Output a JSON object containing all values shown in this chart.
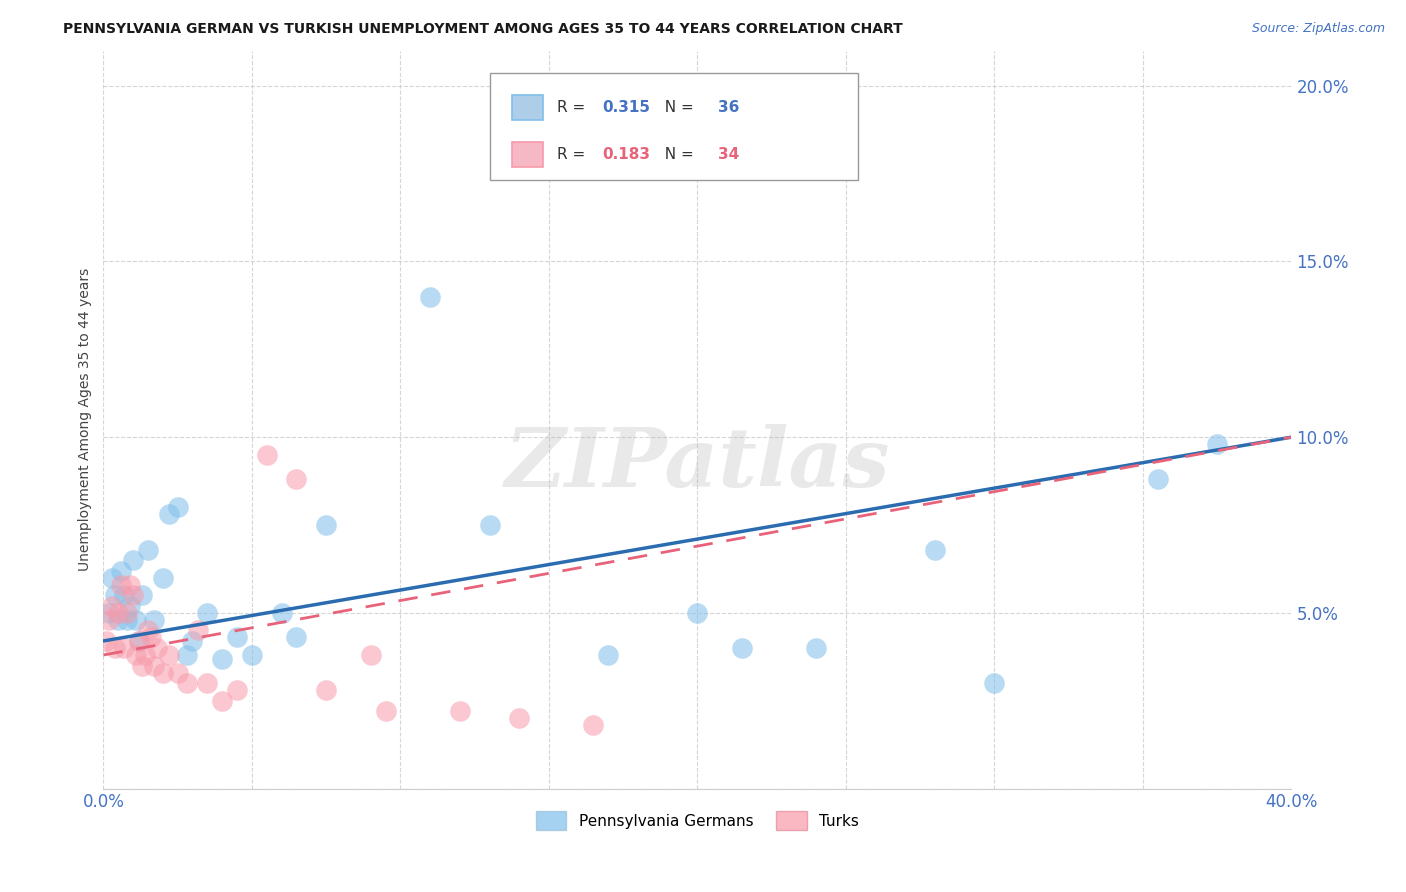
{
  "title": "PENNSYLVANIA GERMAN VS TURKISH UNEMPLOYMENT AMONG AGES 35 TO 44 YEARS CORRELATION CHART",
  "source": "Source: ZipAtlas.com",
  "ylabel": "Unemployment Among Ages 35 to 44 years",
  "xlim": [
    0.0,
    0.4
  ],
  "ylim": [
    0.0,
    0.21
  ],
  "xticks": [
    0.0,
    0.05,
    0.1,
    0.15,
    0.2,
    0.25,
    0.3,
    0.35,
    0.4
  ],
  "yticks": [
    0.0,
    0.05,
    0.1,
    0.15,
    0.2
  ],
  "grid_color": "#cccccc",
  "background_color": "#ffffff",
  "watermark": "ZIPatlas",
  "series_pg": {
    "name": "Pennsylvania Germans",
    "color": "#7fbfea",
    "x": [
      0.002,
      0.003,
      0.004,
      0.005,
      0.006,
      0.007,
      0.008,
      0.009,
      0.01,
      0.011,
      0.012,
      0.013,
      0.015,
      0.017,
      0.02,
      0.022,
      0.025,
      0.028,
      0.03,
      0.035,
      0.04,
      0.045,
      0.05,
      0.06,
      0.065,
      0.075,
      0.11,
      0.13,
      0.17,
      0.2,
      0.215,
      0.24,
      0.28,
      0.3,
      0.355,
      0.375
    ],
    "y": [
      0.05,
      0.06,
      0.055,
      0.048,
      0.062,
      0.055,
      0.048,
      0.052,
      0.065,
      0.048,
      0.042,
      0.055,
      0.068,
      0.048,
      0.06,
      0.078,
      0.08,
      0.038,
      0.042,
      0.05,
      0.037,
      0.043,
      0.038,
      0.05,
      0.043,
      0.075,
      0.14,
      0.075,
      0.038,
      0.05,
      0.04,
      0.04,
      0.068,
      0.03,
      0.088,
      0.098
    ]
  },
  "series_turks": {
    "name": "Turks",
    "color": "#f89aaa",
    "x": [
      0.001,
      0.002,
      0.003,
      0.004,
      0.005,
      0.006,
      0.007,
      0.008,
      0.009,
      0.01,
      0.011,
      0.012,
      0.013,
      0.014,
      0.015,
      0.016,
      0.017,
      0.018,
      0.02,
      0.022,
      0.025,
      0.028,
      0.032,
      0.035,
      0.04,
      0.045,
      0.055,
      0.065,
      0.075,
      0.09,
      0.095,
      0.12,
      0.14,
      0.165
    ],
    "y": [
      0.042,
      0.048,
      0.052,
      0.04,
      0.05,
      0.058,
      0.04,
      0.05,
      0.058,
      0.055,
      0.038,
      0.042,
      0.035,
      0.038,
      0.045,
      0.043,
      0.035,
      0.04,
      0.033,
      0.038,
      0.033,
      0.03,
      0.045,
      0.03,
      0.025,
      0.028,
      0.095,
      0.088,
      0.028,
      0.038,
      0.022,
      0.022,
      0.02,
      0.018
    ]
  },
  "pg_trendline": {
    "x": [
      0.0,
      0.4
    ],
    "y": [
      0.042,
      0.1
    ],
    "color": "#2b6cb0",
    "linewidth": 2.5
  },
  "turks_trendline": {
    "x": [
      0.0,
      0.4
    ],
    "y": [
      0.038,
      0.1
    ],
    "color": "#e8637a",
    "linewidth": 2.0
  },
  "legend_box": {
    "R_pg": "0.315",
    "N_pg": "36",
    "R_turks": "0.183",
    "N_turks": "34",
    "color_pg": "#4472c4",
    "color_turks": "#e8637a",
    "patch_color_pg": "#aecde8",
    "patch_color_turks": "#f5b8c4",
    "patch_edge_pg": "#7fbfea",
    "patch_edge_turks": "#f89aaa"
  }
}
